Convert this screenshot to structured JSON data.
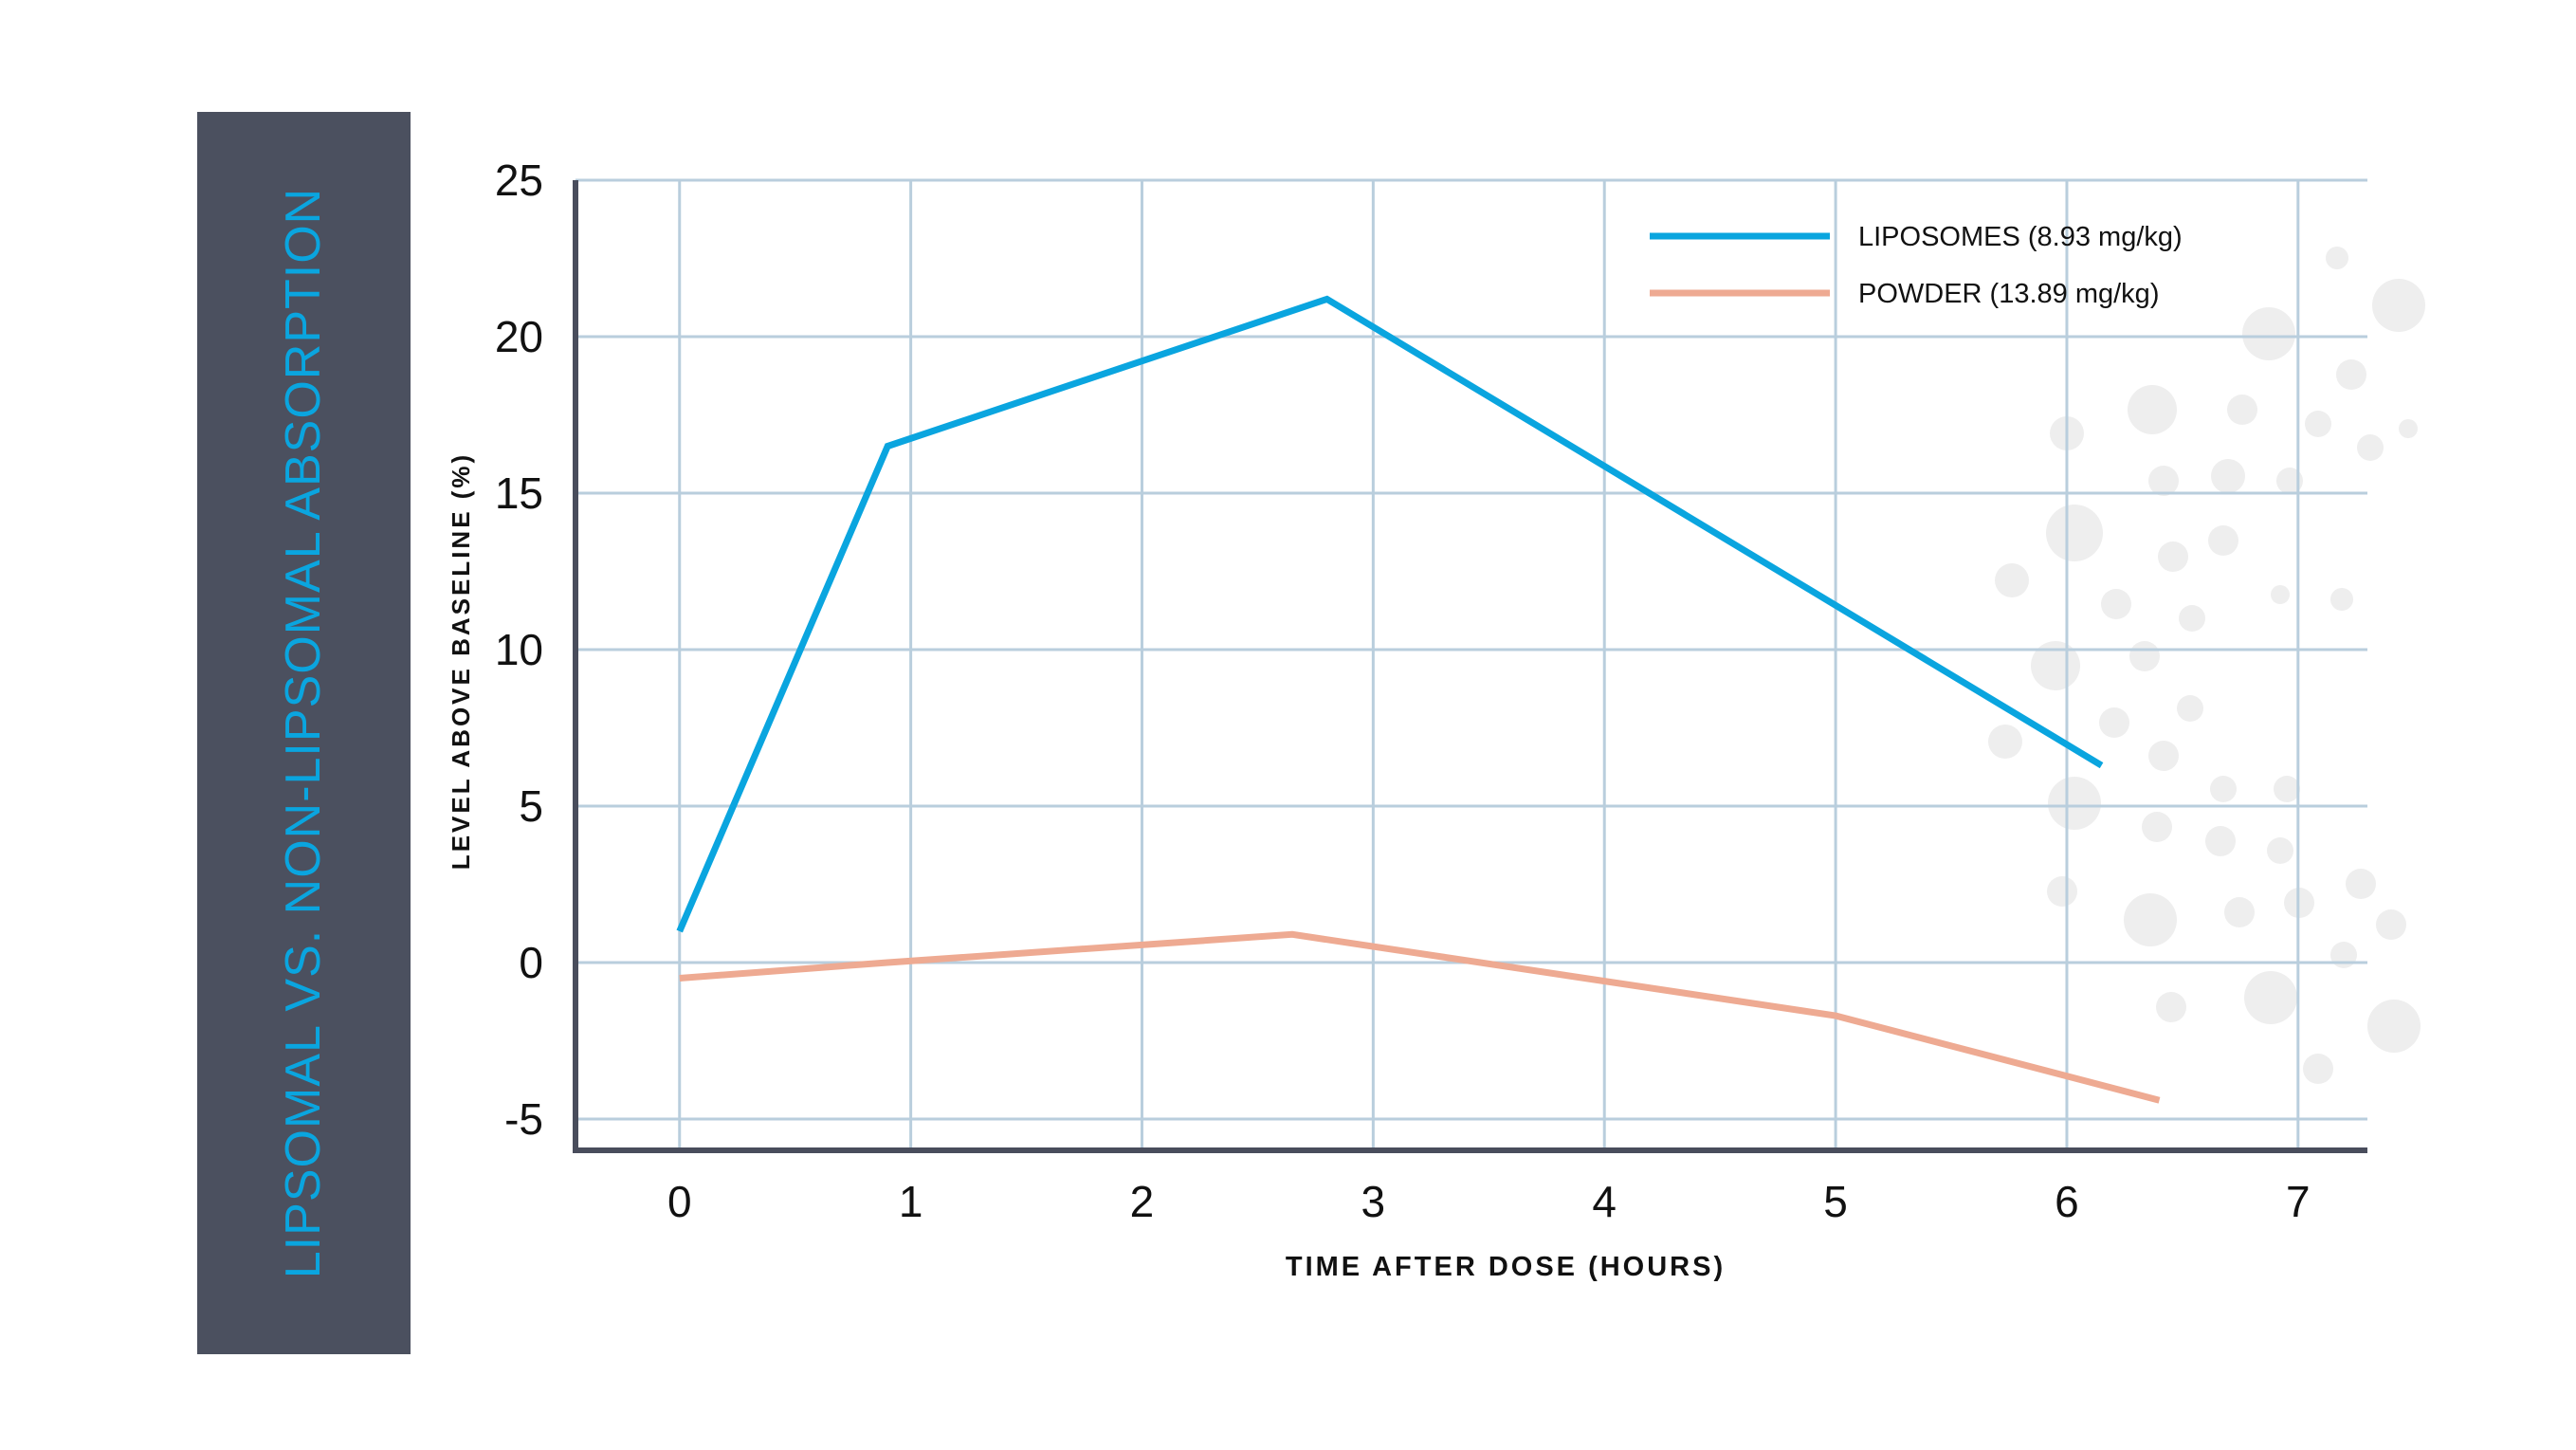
{
  "side_title": "LIPSOMAL VS. NON-LIPSOMAL ABSORPTION",
  "colors": {
    "panel": "#4b505f",
    "title": "#0aa5df",
    "liposomes": "#0aa5df",
    "powder": "#eeaa92",
    "grid": "#b9cedd",
    "axis": "#494d5c",
    "dots": "#eeeeee"
  },
  "chart_data": {
    "type": "line",
    "title": "LIPSOMAL VS. NON-LIPSOMAL ABSORPTION",
    "xlabel": "TIME AFTER DOSE (HOURS)",
    "ylabel": "LEVEL ABOVE BASELINE (%)",
    "xlim": [
      -0.45,
      7.3
    ],
    "ylim": [
      -6,
      25
    ],
    "x_ticks": [
      0,
      1,
      2,
      3,
      4,
      5,
      6,
      7
    ],
    "x_tick_labels": [
      "0",
      "1",
      "2",
      "3",
      "4",
      "5",
      "6",
      "7"
    ],
    "y_ticks": [
      -5,
      0,
      5,
      10,
      15,
      20,
      25
    ],
    "y_tick_labels": [
      "-5",
      "0",
      "5",
      "10",
      "15",
      "20",
      "25"
    ],
    "grid": true,
    "legend_position": "top-right",
    "series": [
      {
        "name": "LIPOSOMES (8.93 mg/kg)",
        "color": "#0aa5df",
        "x": [
          0,
          0.9,
          2.8,
          6.15
        ],
        "y": [
          1.0,
          16.5,
          21.2,
          6.3
        ]
      },
      {
        "name": "POWDER (13.89 mg/kg)",
        "color": "#eeaa92",
        "x": [
          0,
          0.9,
          2.65,
          5.0,
          6.4
        ],
        "y": [
          -0.5,
          0,
          0.9,
          -1.7,
          -4.4
        ]
      }
    ]
  }
}
